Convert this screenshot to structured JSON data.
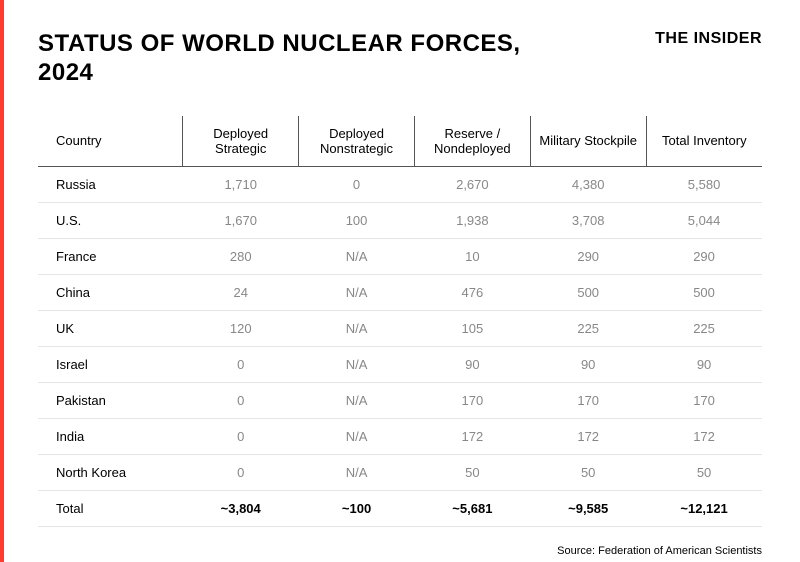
{
  "colors": {
    "accent": "#ff3b30",
    "text": "#000000",
    "header_border": "#555555",
    "row_border": "#e5e5e5",
    "cell_text": "#888888",
    "total_text": "#000000"
  },
  "title": "STATUS OF WORLD NUCLEAR FORCES, 2024",
  "brand": "THE INSIDER",
  "table": {
    "columns": [
      "Country",
      "Deployed Strategic",
      "Deployed Nonstrategic",
      "Reserve / Nondeployed",
      "Military Stockpile",
      "Total Inventory"
    ],
    "rows": [
      [
        "Russia",
        "1,710",
        "0",
        "2,670",
        "4,380",
        "5,580"
      ],
      [
        "U.S.",
        "1,670",
        "100",
        "1,938",
        "3,708",
        "5,044"
      ],
      [
        "France",
        "280",
        "N/A",
        "10",
        "290",
        "290"
      ],
      [
        "China",
        "24",
        "N/A",
        "476",
        "500",
        "500"
      ],
      [
        "UK",
        "120",
        "N/A",
        "105",
        "225",
        "225"
      ],
      [
        "Israel",
        "0",
        "N/A",
        "90",
        "90",
        "90"
      ],
      [
        "Pakistan",
        "0",
        "N/A",
        "170",
        "170",
        "170"
      ],
      [
        "India",
        "0",
        "N/A",
        "172",
        "172",
        "172"
      ],
      [
        "North Korea",
        "0",
        "N/A",
        "50",
        "50",
        "50"
      ]
    ],
    "total_row": [
      "Total",
      "~3,804",
      "~100",
      "~5,681",
      "~9,585",
      "~12,121"
    ]
  },
  "source": "Source: Federation of American Scientists"
}
